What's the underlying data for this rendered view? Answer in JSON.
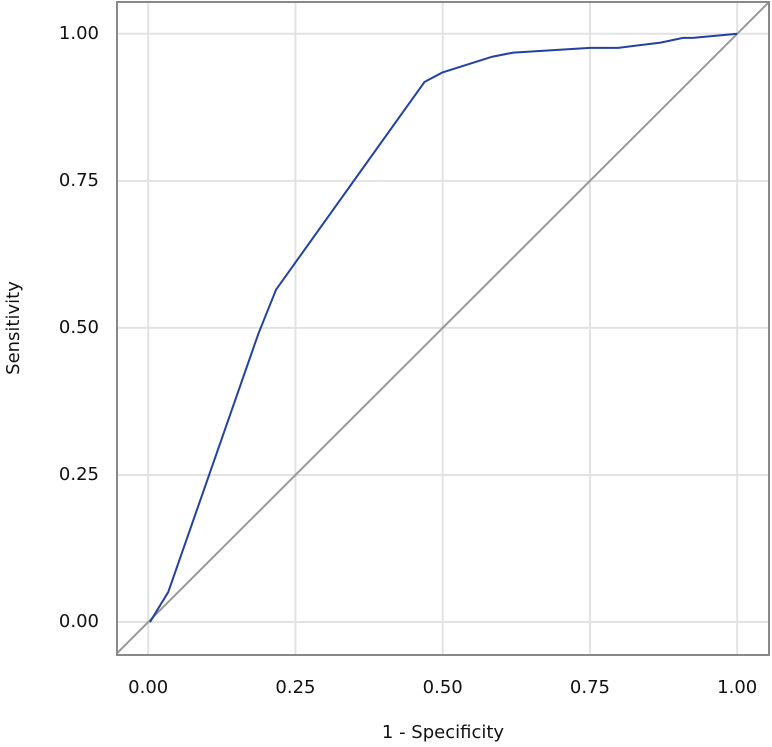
{
  "chart_data": {
    "type": "line",
    "x_label": "1 - Specificity",
    "y_label": "Sensitivity",
    "x": [
      0.003,
      0.034,
      0.187,
      0.217,
      0.469,
      0.499,
      0.584,
      0.62,
      0.75,
      0.798,
      0.87,
      0.908,
      0.925,
      1.0
    ],
    "values": [
      0.0,
      0.051,
      0.49,
      0.565,
      0.918,
      0.934,
      0.961,
      0.968,
      0.976,
      0.976,
      0.985,
      0.993,
      0.993,
      1.0
    ],
    "color": "#2241a0",
    "reference_color": "#999999",
    "xlim": [
      -0.053,
      1.054
    ],
    "ylim": [
      -0.056,
      1.054
    ],
    "xticks": [
      {
        "value": 0,
        "label": "0.00"
      },
      {
        "value": 0.25,
        "label": "0.25"
      },
      {
        "value": 0.5,
        "label": "0.50"
      },
      {
        "value": 0.75,
        "label": "0.75"
      },
      {
        "value": 1,
        "label": "1.00"
      }
    ],
    "yticks": [
      {
        "value": 0,
        "label": "0.00"
      },
      {
        "value": 0.25,
        "label": "0.25"
      },
      {
        "value": 0.5,
        "label": "0.50"
      },
      {
        "value": 0.75,
        "label": "0.75"
      },
      {
        "value": 1,
        "label": "1.00"
      }
    ],
    "grid": true
  }
}
